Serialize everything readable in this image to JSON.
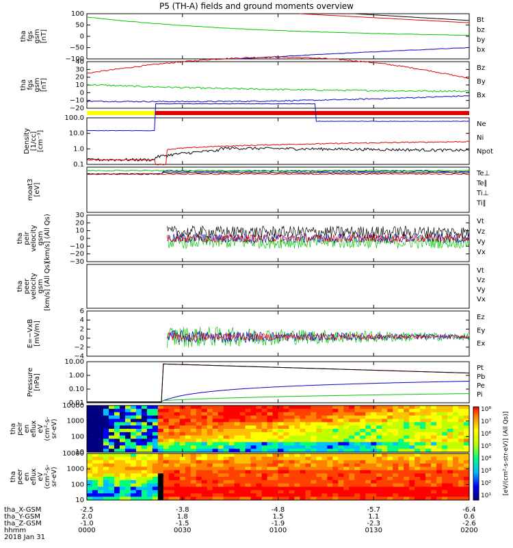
{
  "title": "P5 (TH-A) fields and ground moments overview",
  "colors": {
    "black": "#000000",
    "red": "#e00000",
    "green": "#00c800",
    "blue": "#0000c8"
  },
  "x_ticks": {
    "tha_X-GSM": [
      "-2.5",
      "-3.8",
      "-4.8",
      "-5.7",
      "-6.4"
    ],
    "tha_Y-GSM": [
      "2.0",
      "1.8",
      "1.5",
      "1.1",
      "0.6"
    ],
    "tha_Z-GSM": [
      "-1.0",
      "-1.5",
      "-1.9",
      "-2.3",
      "-2.6"
    ],
    "hhmm": [
      "0000",
      "0030",
      "0100",
      "0130",
      "0200"
    ]
  },
  "footer": {
    "row_labels": [
      "tha_X-GSM",
      "tha_Y-GSM",
      "tha_Z-GSM",
      "hhmm"
    ],
    "date": "2018 Jan 31"
  },
  "colorbar_label": "[eV/(cm²-s-str-eV)] (All Qs)]",
  "colorbar_ticks": [
    "10⁸",
    "10⁷",
    "10⁶",
    "10⁵",
    "10⁴",
    "10³",
    "10²",
    "10¹"
  ],
  "chart_data": [
    {
      "type": "line",
      "ylabel": [
        "tha",
        "fgs",
        "gsm",
        "[nT]"
      ],
      "ylim": [
        -100,
        100
      ],
      "yticks": [
        "100",
        "50",
        "0",
        "−50",
        "−100"
      ],
      "series": [
        {
          "name": "Bt",
          "color": "#000000"
        },
        {
          "name": "bz",
          "color": "#e00000"
        },
        {
          "name": "by",
          "color": "#00c800"
        },
        {
          "name": "bx",
          "color": "#0000c8"
        }
      ]
    },
    {
      "type": "line",
      "ylabel": [
        "tha",
        "fgs",
        "gsm",
        "[nT]"
      ],
      "ylim": [
        -20,
        40
      ],
      "yticks": [
        "40",
        "30",
        "20",
        "10",
        "0",
        "−10",
        "−20"
      ],
      "series": [
        {
          "name": "Bz",
          "color": "#e00000"
        },
        {
          "name": "By",
          "color": "#00c800"
        },
        {
          "name": "Bx",
          "color": "#0000c8"
        }
      ]
    },
    {
      "type": "line",
      "ylabel": [
        "Density",
        "[1/cc]",
        "[cm⁻³]"
      ],
      "yticks": [
        "100.0",
        "10.0",
        "1.0",
        "0.1"
      ],
      "series": [
        {
          "name": "Ne",
          "color": "#e00000"
        },
        {
          "name": "Ni",
          "color": "#000000"
        },
        {
          "name": "Npot",
          "color": "#0000c8"
        }
      ]
    },
    {
      "type": "line",
      "ylabel": [
        "moat3",
        "[eV]"
      ],
      "series": [
        {
          "name": "Te⊥",
          "color": "#e00000"
        },
        {
          "name": "Te∥",
          "color": "#000000"
        },
        {
          "name": "Ti⊥",
          "color": "#0000c8"
        },
        {
          "name": "Ti∥",
          "color": "#00c800"
        }
      ]
    },
    {
      "type": "line",
      "ylabel": [
        "tha",
        "peir",
        "velocity",
        "gsm",
        "[km/s] (All Qs)"
      ],
      "ylim": [
        -30,
        30
      ],
      "yticks": [
        "30",
        "20",
        "10",
        "0",
        "−10",
        "−20",
        "−30"
      ],
      "series": [
        {
          "name": "Vt",
          "color": "#000000"
        },
        {
          "name": "Vz",
          "color": "#e00000"
        },
        {
          "name": "Vy",
          "color": "#00c800"
        },
        {
          "name": "Vx",
          "color": "#0000c8"
        }
      ]
    },
    {
      "type": "line",
      "ylabel": [
        "tha",
        "peer",
        "velocity",
        "gsm",
        "[km/s] (All Qs)"
      ],
      "series": [
        {
          "name": "Vt",
          "color": "#000000"
        },
        {
          "name": "Vz",
          "color": "#e00000"
        },
        {
          "name": "Vy",
          "color": "#00c800"
        },
        {
          "name": "Vx",
          "color": "#0000c8"
        }
      ]
    },
    {
      "type": "line",
      "ylabel": [
        "E=−VxB",
        "[mV/m]"
      ],
      "ylim": [
        -4,
        6
      ],
      "yticks": [
        "6",
        "4",
        "2",
        "0",
        "−2",
        "−4"
      ],
      "series": [
        {
          "name": "Ez",
          "color": "#e00000"
        },
        {
          "name": "Ey",
          "color": "#00c800"
        },
        {
          "name": "Ex",
          "color": "#0000c8"
        }
      ]
    },
    {
      "type": "line",
      "ylabel": [
        "Pressure",
        "[nPa]"
      ],
      "yticks": [
        "10.00",
        "1.00",
        "0.10",
        "0.01"
      ],
      "series": [
        {
          "name": "Pt",
          "color": "#000000"
        },
        {
          "name": "Pb",
          "color": "#e00000"
        },
        {
          "name": "Pe",
          "color": "#00c800"
        },
        {
          "name": "Pi",
          "color": "#0000c8"
        }
      ]
    },
    {
      "type": "heatmap",
      "ylabel": [
        "tha",
        "peir",
        "en",
        "eflux",
        "eV",
        "(cm²-s-",
        "sr-eV)"
      ],
      "yticks": [
        "10000",
        "1000",
        "100",
        "10"
      ]
    },
    {
      "type": "heatmap",
      "ylabel": [
        "tha",
        "peer",
        "en",
        "eflux",
        "eV",
        "(cm²-s-",
        "sr-eV)"
      ],
      "yticks": [
        "10000",
        "1000",
        "100",
        "10"
      ]
    }
  ]
}
